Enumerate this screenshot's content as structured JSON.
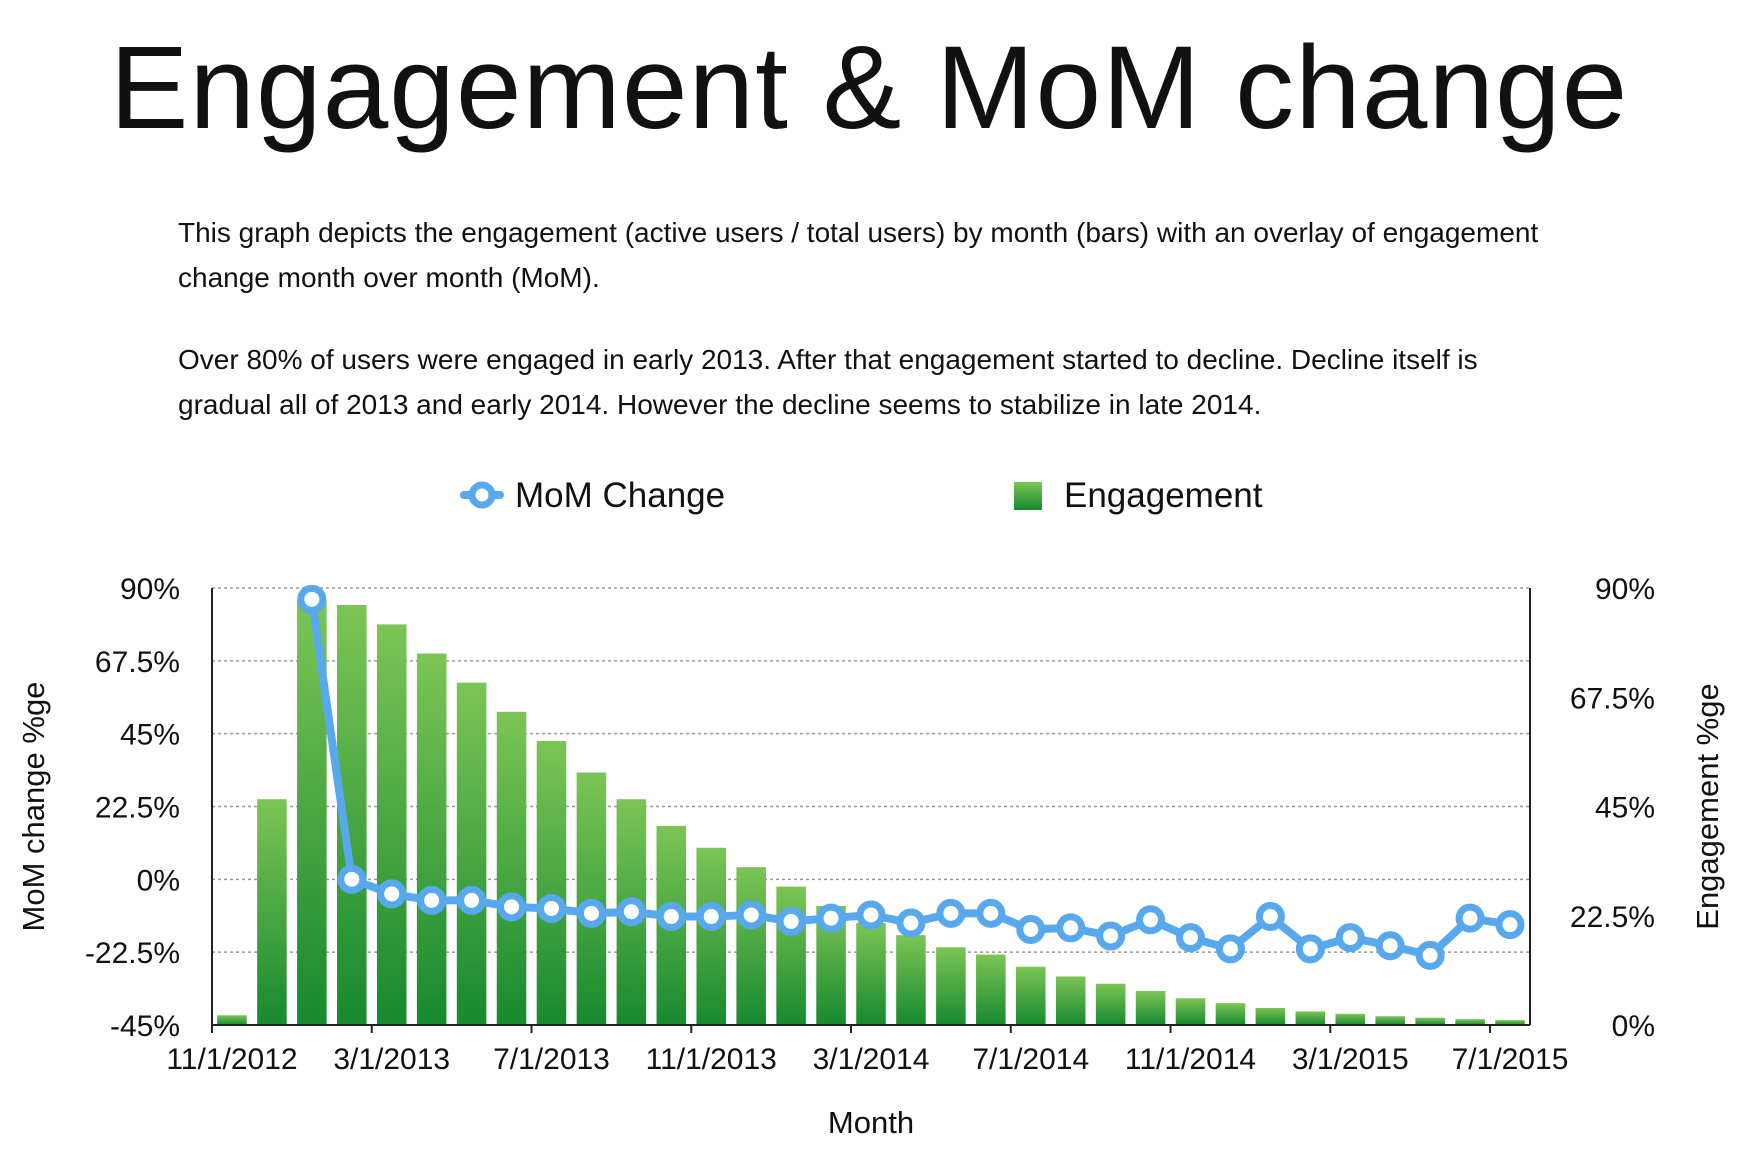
{
  "title": "Engagement & MoM change",
  "description": [
    "This graph depicts the engagement (active users / total users) by month (bars) with an overlay of engagement change month over month (MoM).",
    "Over 80% of users were engaged in early 2013. After that engagement started to decline. Decline itself is gradual all of 2013 and early 2014. However the decline seems to stabilize in late 2014."
  ],
  "colors": {
    "bar_top": "#7cc555",
    "bar_bottom": "#17892f",
    "line": "#58a8ee",
    "grid": "#9a9a9a",
    "marker_fill": "#ffffff"
  },
  "chart_data": {
    "type": "bar",
    "title": "Engagement & MoM change",
    "xlabel": "Month",
    "ylabel_left": "MoM change %ge",
    "ylabel_right": "Engagement %ge",
    "legend_position": "top-center",
    "grid": true,
    "x_tick_labels": [
      "11/1/2012",
      "3/1/2013",
      "7/1/2013",
      "11/1/2013",
      "3/1/2014",
      "7/1/2014",
      "11/1/2014",
      "3/1/2015",
      "7/1/2015"
    ],
    "x_tick_label_indices": [
      0,
      4,
      8,
      12,
      16,
      20,
      24,
      28,
      32
    ],
    "categories": [
      "11/1/2012",
      "12/1/2012",
      "1/1/2013",
      "2/1/2013",
      "3/1/2013",
      "4/1/2013",
      "5/1/2013",
      "6/1/2013",
      "7/1/2013",
      "8/1/2013",
      "9/1/2013",
      "10/1/2013",
      "11/1/2013",
      "12/1/2013",
      "1/1/2014",
      "2/1/2014",
      "3/1/2014",
      "4/1/2014",
      "5/1/2014",
      "6/1/2014",
      "7/1/2014",
      "8/1/2014",
      "9/1/2014",
      "10/1/2014",
      "11/1/2014",
      "12/1/2014",
      "1/1/2015",
      "2/1/2015",
      "3/1/2015",
      "4/1/2015",
      "5/1/2015",
      "6/1/2015",
      "7/1/2015"
    ],
    "left_axis": {
      "ylim": [
        -45,
        90
      ],
      "ticks": [
        "90%",
        "67.5%",
        "45%",
        "22.5%",
        "0%",
        "-22.5%",
        "-45%"
      ]
    },
    "right_axis": {
      "ylim": [
        0,
        90
      ],
      "ticks": [
        "90%",
        "67.5%",
        "45%",
        "22.5%",
        "0%"
      ]
    },
    "series": [
      {
        "name": "Engagement",
        "type": "bar",
        "axis": "right",
        "values": [
          2,
          46.5,
          87.5,
          86.5,
          82.5,
          76.5,
          70.5,
          64.5,
          58.5,
          52,
          46.5,
          41,
          36.5,
          32.5,
          28.5,
          24.5,
          21,
          18.5,
          16,
          14.5,
          12,
          10,
          8.5,
          7,
          5.5,
          4.5,
          3.5,
          2.8,
          2.3,
          1.8,
          1.5,
          1.2,
          1
        ]
      },
      {
        "name": "MoM Change",
        "type": "line",
        "axis": "left",
        "values": [
          null,
          null,
          86.5,
          0,
          -4.5,
          -6.5,
          -6.5,
          -8.5,
          -9,
          -10.5,
          -10,
          -11.5,
          -11.5,
          -11,
          -13,
          -12,
          -11,
          -13.5,
          -10.5,
          -10.5,
          -15.5,
          -15,
          -17.5,
          -12.5,
          -18,
          -21.5,
          -11.5,
          -21.5,
          -18,
          -20.5,
          -23.5,
          -12,
          -14
        ]
      }
    ]
  }
}
